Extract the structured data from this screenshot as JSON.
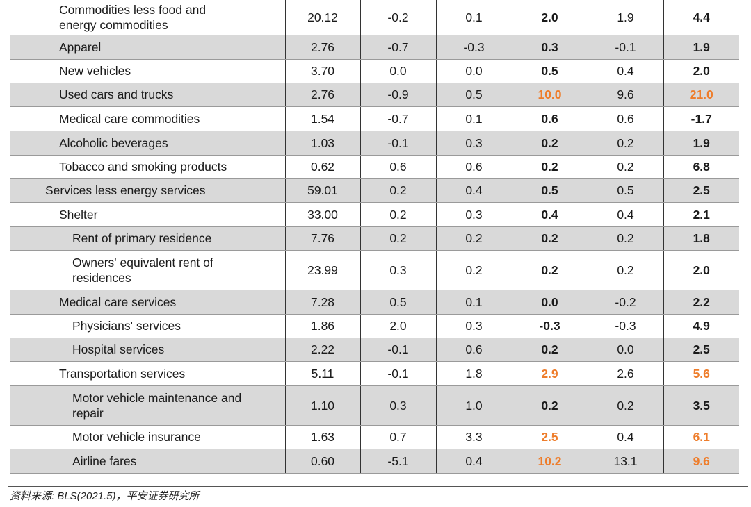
{
  "table": {
    "rows": [
      {
        "label": "Commodities less food and energy commodities",
        "weight": "20.12",
        "c1": "-0.2",
        "c2": "0.1",
        "c3": "2.0",
        "c4": "1.9",
        "c5": "4.4",
        "indent": 1,
        "shade": false,
        "h": 50,
        "hl3": false,
        "hl5": false
      },
      {
        "label": "Apparel",
        "weight": "2.76",
        "c1": "-0.7",
        "c2": "-0.3",
        "c3": "0.3",
        "c4": "-0.1",
        "c5": "1.9",
        "indent": 1,
        "shade": true,
        "h": 35,
        "hl3": false,
        "hl5": false
      },
      {
        "label": "New vehicles",
        "weight": "3.70",
        "c1": "0.0",
        "c2": "0.0",
        "c3": "0.5",
        "c4": "0.4",
        "c5": "2.0",
        "indent": 1,
        "shade": false,
        "h": 34,
        "hl3": false,
        "hl5": false
      },
      {
        "label": "Used cars and trucks",
        "weight": "2.76",
        "c1": "-0.9",
        "c2": "0.5",
        "c3": "10.0",
        "c4": "9.6",
        "c5": "21.0",
        "indent": 1,
        "shade": true,
        "h": 34,
        "hl3": true,
        "hl5": true
      },
      {
        "label": "Medical care commodities",
        "weight": "1.54",
        "c1": "-0.7",
        "c2": "0.1",
        "c3": "0.6",
        "c4": "0.6",
        "c5": "-1.7",
        "indent": 1,
        "shade": false,
        "h": 35,
        "hl3": false,
        "hl5": false
      },
      {
        "label": "Alcoholic beverages",
        "weight": "1.03",
        "c1": "-0.1",
        "c2": "0.3",
        "c3": "0.2",
        "c4": "0.2",
        "c5": "1.9",
        "indent": 1,
        "shade": true,
        "h": 35,
        "hl3": false,
        "hl5": false
      },
      {
        "label": "Tobacco and smoking products",
        "weight": "0.62",
        "c1": "0.6",
        "c2": "0.6",
        "c3": "0.2",
        "c4": "0.2",
        "c5": "6.8",
        "indent": 1,
        "shade": false,
        "h": 34,
        "hl3": false,
        "hl5": false
      },
      {
        "label": "Services less energy services",
        "weight": "59.01",
        "c1": "0.2",
        "c2": "0.4",
        "c3": "0.5",
        "c4": "0.5",
        "c5": "2.5",
        "indent": 0,
        "shade": true,
        "h": 34,
        "hl3": false,
        "hl5": false
      },
      {
        "label": "Shelter",
        "weight": "33.00",
        "c1": "0.2",
        "c2": "0.3",
        "c3": "0.4",
        "c4": "0.4",
        "c5": "2.1",
        "indent": 1,
        "shade": false,
        "h": 35,
        "hl3": false,
        "hl5": false
      },
      {
        "label": "Rent of primary residence",
        "weight": "7.76",
        "c1": "0.2",
        "c2": "0.2",
        "c3": "0.2",
        "c4": "0.2",
        "c5": "1.8",
        "indent": 2,
        "shade": true,
        "h": 34,
        "hl3": false,
        "hl5": false
      },
      {
        "label": "Owners' equivalent rent of residences",
        "weight": "23.99",
        "c1": "0.3",
        "c2": "0.2",
        "c3": "0.2",
        "c4": "0.2",
        "c5": "2.0",
        "indent": 2,
        "shade": false,
        "h": 57,
        "hl3": false,
        "hl5": false
      },
      {
        "label": "Medical care services",
        "weight": "7.28",
        "c1": "0.5",
        "c2": "0.1",
        "c3": "0.0",
        "c4": "-0.2",
        "c5": "2.2",
        "indent": 1,
        "shade": true,
        "h": 35,
        "hl3": false,
        "hl5": false
      },
      {
        "label": "Physicians' services",
        "weight": "1.86",
        "c1": "2.0",
        "c2": "0.3",
        "c3": "-0.3",
        "c4": "-0.3",
        "c5": "4.9",
        "indent": 2,
        "shade": false,
        "h": 34,
        "hl3": false,
        "hl5": false
      },
      {
        "label": "Hospital services",
        "weight": "2.22",
        "c1": "-0.1",
        "c2": "0.6",
        "c3": "0.2",
        "c4": "0.0",
        "c5": "2.5",
        "indent": 2,
        "shade": true,
        "h": 34,
        "hl3": false,
        "hl5": false
      },
      {
        "label": "Transportation services",
        "weight": "5.11",
        "c1": "-0.1",
        "c2": "1.8",
        "c3": "2.9",
        "c4": "2.6",
        "c5": "5.6",
        "indent": 1,
        "shade": false,
        "h": 35,
        "hl3": true,
        "hl5": true
      },
      {
        "label": "Motor vehicle maintenance and repair",
        "weight": "1.10",
        "c1": "0.3",
        "c2": "1.0",
        "c3": "0.2",
        "c4": "0.2",
        "c5": "3.5",
        "indent": 2,
        "shade": true,
        "h": 57,
        "hl3": false,
        "hl5": false
      },
      {
        "label": "Motor vehicle insurance",
        "weight": "1.63",
        "c1": "0.7",
        "c2": "3.3",
        "c3": "2.5",
        "c4": "0.4",
        "c5": "6.1",
        "indent": 2,
        "shade": false,
        "h": 34,
        "hl3": true,
        "hl5": true
      },
      {
        "label": "Airline fares",
        "weight": "0.60",
        "c1": "-5.1",
        "c2": "0.4",
        "c3": "10.2",
        "c4": "13.1",
        "c5": "9.6",
        "indent": 2,
        "shade": true,
        "h": 35,
        "hl3": true,
        "hl5": true
      }
    ]
  },
  "source": "资料来源: BLS(2021.5)，平安证券研究所",
  "colors": {
    "highlight": "#ee7d2b",
    "shade": "#d9d9d9"
  }
}
